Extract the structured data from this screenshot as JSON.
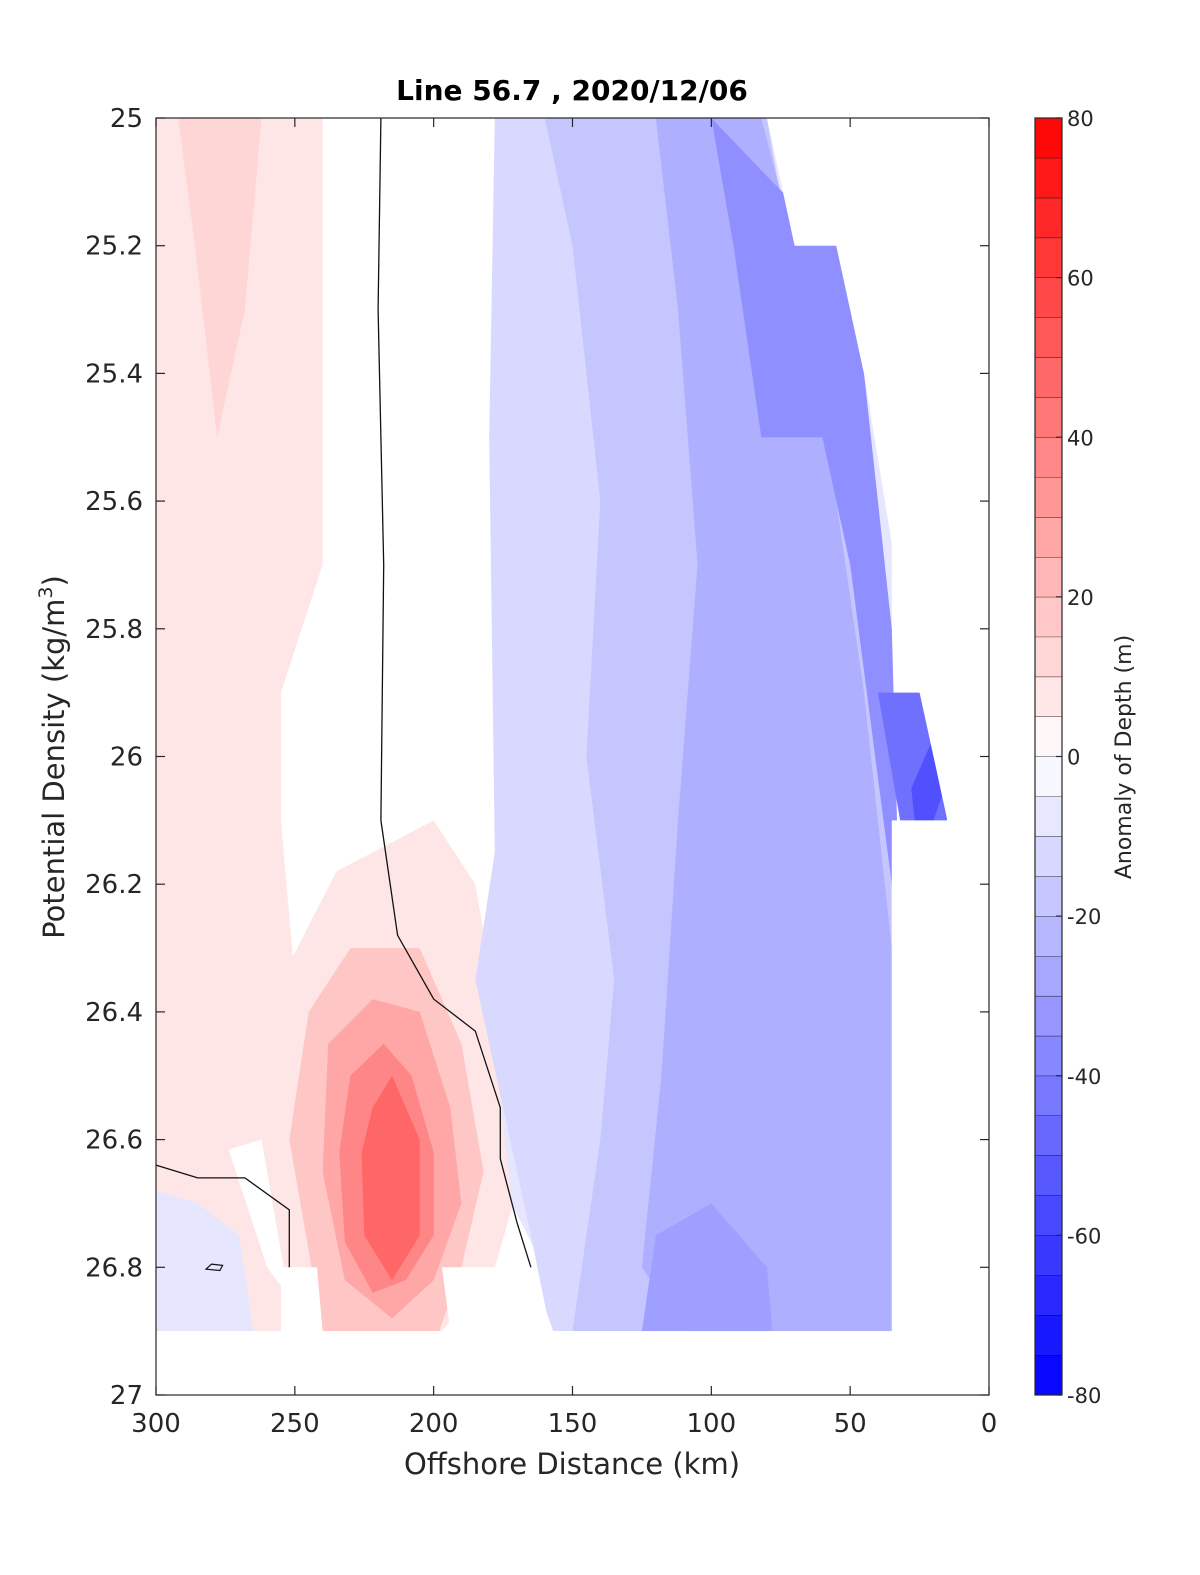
{
  "chart_data": {
    "type": "heatmap",
    "title": "Line 56.7 , 2020/12/06",
    "xlabel": "Offshore Distance (km)",
    "ylabel_main": "Potential Density (kg/m",
    "ylabel_sup": "3",
    "ylabel_close": ")",
    "colorbar_label": "Anomaly of Depth (m)",
    "xlim": [
      300,
      0
    ],
    "ylim": [
      25,
      27
    ],
    "x_ticks": [
      300,
      250,
      200,
      150,
      100,
      50,
      0
    ],
    "y_ticks": [
      25,
      25.2,
      25.4,
      25.6,
      25.8,
      26,
      26.2,
      26.4,
      26.6,
      26.8,
      27
    ],
    "y_tick_labels": [
      "25",
      "25.2",
      "25.4",
      "25.6",
      "25.8",
      "26",
      "26.2",
      "26.4",
      "26.6",
      "26.8",
      "27"
    ],
    "clim": [
      -80,
      80
    ],
    "colorbar_step": 5,
    "colorbar_ticks": [
      80,
      60,
      40,
      20,
      0,
      -20,
      -40,
      -60,
      -80
    ],
    "colorbar_tick_labels": [
      "80",
      "60",
      "40",
      "20",
      "0",
      "-20",
      "-40",
      "-60",
      "-80"
    ],
    "colormap": {
      "negative": "#0000ff",
      "zero": "#ffffff",
      "positive": "#ff0000"
    },
    "contour_level": 0,
    "regions": [
      {
        "level": 8,
        "points": [
          [
            300,
            25
          ],
          [
            240,
            25
          ],
          [
            240,
            25.7
          ],
          [
            255,
            25.9
          ],
          [
            255,
            26.1
          ],
          [
            250,
            26.35
          ],
          [
            262,
            26.6
          ],
          [
            300,
            26.65
          ]
        ]
      },
      {
        "level": 13,
        "points": [
          [
            300,
            25
          ],
          [
            262,
            25
          ],
          [
            268,
            25.3
          ],
          [
            278,
            25.5
          ],
          [
            286,
            25.2
          ],
          [
            292,
            25
          ]
        ]
      },
      {
        "level": 8,
        "points": [
          [
            300,
            26.65
          ],
          [
            275,
            26.6
          ],
          [
            260,
            26.8
          ],
          [
            243,
            26.9
          ],
          [
            300,
            26.9
          ]
        ]
      },
      {
        "level": 8,
        "points": [
          [
            255,
            26.35
          ],
          [
            235,
            26.18
          ],
          [
            200,
            26.1
          ],
          [
            185,
            26.2
          ],
          [
            175,
            26.45
          ],
          [
            168,
            26.65
          ],
          [
            178,
            26.8
          ],
          [
            197,
            26.9
          ],
          [
            250,
            26.9
          ],
          [
            262,
            26.6
          ]
        ]
      },
      {
        "level": 18,
        "points": [
          [
            245,
            26.4
          ],
          [
            230,
            26.3
          ],
          [
            205,
            26.3
          ],
          [
            190,
            26.45
          ],
          [
            182,
            26.65
          ],
          [
            190,
            26.8
          ],
          [
            198,
            26.9
          ],
          [
            240,
            26.9
          ],
          [
            252,
            26.6
          ]
        ]
      },
      {
        "level": 28,
        "points": [
          [
            238,
            26.45
          ],
          [
            222,
            26.38
          ],
          [
            205,
            26.4
          ],
          [
            194,
            26.55
          ],
          [
            190,
            26.7
          ],
          [
            200,
            26.82
          ],
          [
            215,
            26.88
          ],
          [
            232,
            26.82
          ],
          [
            240,
            26.65
          ]
        ]
      },
      {
        "level": 38,
        "points": [
          [
            230,
            26.5
          ],
          [
            218,
            26.45
          ],
          [
            208,
            26.5
          ],
          [
            200,
            26.62
          ],
          [
            200,
            26.75
          ],
          [
            210,
            26.82
          ],
          [
            222,
            26.84
          ],
          [
            232,
            26.76
          ],
          [
            234,
            26.62
          ]
        ]
      },
      {
        "level": 48,
        "points": [
          [
            222,
            26.55
          ],
          [
            215,
            26.5
          ],
          [
            205,
            26.6
          ],
          [
            205,
            26.75
          ],
          [
            215,
            26.82
          ],
          [
            225,
            26.75
          ],
          [
            226,
            26.62
          ]
        ]
      },
      {
        "level": -8,
        "points": [
          [
            300,
            26.68
          ],
          [
            300,
            26.9
          ],
          [
            265,
            26.9
          ],
          [
            270,
            26.75
          ],
          [
            285,
            26.7
          ]
        ]
      },
      {
        "level": -8,
        "points": [
          [
            195,
            25
          ],
          [
            170,
            25
          ],
          [
            168,
            25.4
          ],
          [
            166,
            25.9
          ],
          [
            168,
            26.2
          ],
          [
            178,
            26.45
          ],
          [
            172,
            26.7
          ],
          [
            158,
            26.82
          ],
          [
            155,
            26.9
          ],
          [
            35,
            26.9
          ],
          [
            35,
            25
          ],
          [
            110,
            25
          ]
        ]
      },
      {
        "level": -12,
        "points": [
          [
            195,
            25
          ],
          [
            178,
            25
          ],
          [
            180,
            25.5
          ],
          [
            178,
            26.15
          ],
          [
            185,
            26.35
          ],
          [
            175,
            26.55
          ],
          [
            165,
            26.75
          ],
          [
            158,
            26.9
          ],
          [
            120,
            26.9
          ],
          [
            118,
            26.5
          ],
          [
            125,
            26.1
          ],
          [
            122,
            25.7
          ],
          [
            110,
            25.2
          ],
          [
            108,
            25
          ]
        ]
      },
      {
        "level": -18,
        "points": [
          [
            160,
            25
          ],
          [
            150,
            25.2
          ],
          [
            140,
            25.6
          ],
          [
            145,
            26.0
          ],
          [
            135,
            26.35
          ],
          [
            140,
            26.6
          ],
          [
            150,
            26.9
          ],
          [
            35,
            26.9
          ],
          [
            35,
            25.8
          ],
          [
            60,
            25.5
          ],
          [
            80,
            25
          ],
          [
            95,
            25
          ]
        ]
      },
      {
        "level": -25,
        "points": [
          [
            120,
            25
          ],
          [
            112,
            25.3
          ],
          [
            105,
            25.7
          ],
          [
            112,
            26.1
          ],
          [
            118,
            26.5
          ],
          [
            125,
            26.8
          ],
          [
            110,
            26.9
          ],
          [
            35,
            26.9
          ],
          [
            35,
            26.3
          ],
          [
            45,
            25.9
          ],
          [
            55,
            25.6
          ],
          [
            70,
            25.2
          ],
          [
            82,
            25
          ]
        ]
      },
      {
        "level": -35,
        "points": [
          [
            100,
            25
          ],
          [
            92,
            25.2
          ],
          [
            82,
            25.5
          ],
          [
            60,
            25.5
          ],
          [
            50,
            25.7
          ],
          [
            35,
            26.2
          ],
          [
            30,
            26.6
          ],
          [
            35,
            25.8
          ],
          [
            45,
            25.4
          ],
          [
            55,
            25.2
          ],
          [
            78,
            25.1
          ]
        ]
      },
      {
        "level": -30,
        "points": [
          [
            120,
            26.75
          ],
          [
            100,
            26.7
          ],
          [
            80,
            26.8
          ],
          [
            78,
            26.9
          ],
          [
            125,
            26.9
          ]
        ]
      },
      {
        "level": -45,
        "points": [
          [
            40,
            25.9
          ],
          [
            28,
            26.2
          ],
          [
            22,
            26.5
          ],
          [
            15,
            26.1
          ],
          [
            22,
            25.9
          ]
        ]
      },
      {
        "level": -55,
        "points": [
          [
            28,
            26.05
          ],
          [
            22,
            26.3
          ],
          [
            20,
            26.1
          ],
          [
            12,
            26.0
          ],
          [
            18,
            25.95
          ]
        ]
      },
      {
        "level": -68,
        "points": [
          [
            20,
            26.0
          ],
          [
            15,
            26.1
          ],
          [
            12,
            26.0
          ],
          [
            16,
            25.95
          ]
        ]
      }
    ],
    "contour_line": [
      [
        219,
        25
      ],
      [
        220,
        25.3
      ],
      [
        218,
        25.7
      ],
      [
        219,
        26.1
      ],
      [
        213,
        26.28
      ],
      [
        200,
        26.38
      ],
      [
        185,
        26.43
      ],
      [
        176,
        26.55
      ],
      [
        176,
        26.63
      ],
      [
        170,
        26.73
      ],
      [
        165,
        26.8
      ]
    ],
    "contour_line_lower": [
      [
        300,
        26.64
      ],
      [
        285,
        26.66
      ],
      [
        268,
        26.66
      ],
      [
        252,
        26.71
      ],
      [
        252,
        26.8
      ]
    ],
    "contour_loop": [
      [
        280,
        26.795
      ],
      [
        276,
        26.797
      ],
      [
        277,
        26.805
      ],
      [
        282,
        26.803
      ]
    ],
    "masks": [
      {
        "points": [
          [
            100,
            25
          ],
          [
            80,
            25
          ],
          [
            75,
            25.1
          ],
          [
            70,
            25.2
          ],
          [
            55,
            25.2
          ],
          [
            45,
            25.4
          ],
          [
            30,
            25.8
          ],
          [
            20,
            26.0
          ],
          [
            15,
            26.1
          ],
          [
            35,
            26.1
          ],
          [
            35,
            26.9
          ],
          [
            0,
            26.9
          ],
          [
            0,
            25
          ]
        ]
      },
      {
        "points": [
          [
            300,
            26.9
          ],
          [
            0,
            26.9
          ],
          [
            0,
            27
          ],
          [
            300,
            27
          ]
        ]
      },
      {
        "points": [
          [
            255,
            26.8
          ],
          [
            242,
            26.8
          ],
          [
            240,
            26.9
          ],
          [
            255,
            26.9
          ]
        ]
      },
      {
        "points": [
          [
            197,
            26.8
          ],
          [
            165,
            26.8
          ],
          [
            157,
            26.9
          ],
          [
            194,
            26.9
          ]
        ]
      }
    ]
  }
}
